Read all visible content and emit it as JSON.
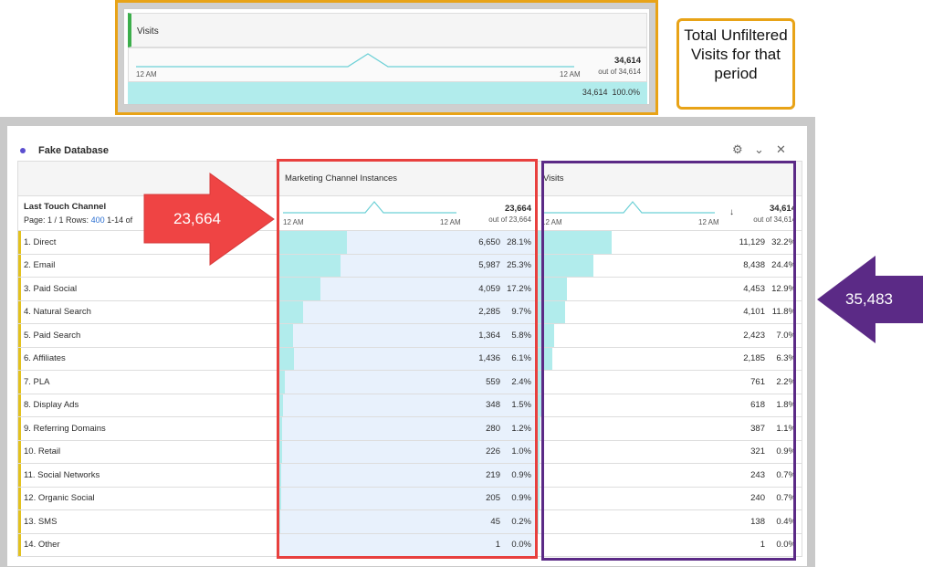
{
  "top_panel": {
    "metric": "Visits",
    "axis_start": "12 AM",
    "axis_end": "12 AM",
    "total": "34,614",
    "out_of": "out of 34,614",
    "row_value": "34,614",
    "row_pct": "100.0%"
  },
  "callout": {
    "text": "Total Unfiltered Visits for that period"
  },
  "panel": {
    "title": "Fake Database",
    "icons": [
      "gear-icon",
      "chevron-down-icon",
      "close-icon"
    ]
  },
  "table": {
    "dimension": "Last Touch Channel",
    "page_label": "Page: 1 / 1 Rows:",
    "rows_per_page": "400",
    "range": "1-14 of",
    "columns": [
      {
        "label": "Marketing Channel Instances",
        "axis_start": "12 AM",
        "axis_end": "12 AM",
        "total": "23,664",
        "out_of": "out of 23,664"
      },
      {
        "label": "Visits",
        "axis_start": "12 AM",
        "axis_end": "12 AM",
        "total": "34,614",
        "out_of": "out of 34,614",
        "sort": "↓"
      }
    ],
    "rows": [
      {
        "name": "1.  Direct",
        "m": "6,650",
        "mp": "28.1%",
        "mf": 28.1,
        "v": "11,129",
        "vp": "32.2%",
        "vf": 32.2
      },
      {
        "name": "2.  Email",
        "m": "5,987",
        "mp": "25.3%",
        "mf": 25.3,
        "v": "8,438",
        "vp": "24.4%",
        "vf": 24.4
      },
      {
        "name": "3.  Paid Social",
        "m": "4,059",
        "mp": "17.2%",
        "mf": 17.2,
        "v": "4,453",
        "vp": "12.9%",
        "vf": 12.9
      },
      {
        "name": "4.  Natural Search",
        "m": "2,285",
        "mp": "9.7%",
        "mf": 9.7,
        "v": "4,101",
        "vp": "11.8%",
        "vf": 11.8
      },
      {
        "name": "5.  Paid Search",
        "m": "1,364",
        "mp": "5.8%",
        "mf": 5.8,
        "v": "2,423",
        "vp": "7.0%",
        "vf": 7.0
      },
      {
        "name": "6.  Affiliates",
        "m": "1,436",
        "mp": "6.1%",
        "mf": 6.1,
        "v": "2,185",
        "vp": "6.3%",
        "vf": 6.3
      },
      {
        "name": "7.  PLA",
        "m": "559",
        "mp": "2.4%",
        "mf": 2.4,
        "v": "761",
        "vp": "2.2%",
        "vf": 2.2
      },
      {
        "name": "8.  Display Ads",
        "m": "348",
        "mp": "1.5%",
        "mf": 1.5,
        "v": "618",
        "vp": "1.8%",
        "vf": 1.8
      },
      {
        "name": "9.  Referring Domains",
        "m": "280",
        "mp": "1.2%",
        "mf": 1.2,
        "v": "387",
        "vp": "1.1%",
        "vf": 1.1
      },
      {
        "name": "10.  Retail",
        "m": "226",
        "mp": "1.0%",
        "mf": 1.0,
        "v": "321",
        "vp": "0.9%",
        "vf": 0.9
      },
      {
        "name": "11.  Social Networks",
        "m": "219",
        "mp": "0.9%",
        "mf": 0.9,
        "v": "243",
        "vp": "0.7%",
        "vf": 0.7
      },
      {
        "name": "12.  Organic Social",
        "m": "205",
        "mp": "0.9%",
        "mf": 0.9,
        "v": "240",
        "vp": "0.7%",
        "vf": 0.7
      },
      {
        "name": "13.  SMS",
        "m": "45",
        "mp": "0.2%",
        "mf": 0.2,
        "v": "138",
        "vp": "0.4%",
        "vf": 0.4
      },
      {
        "name": "14.  Other",
        "m": "1",
        "mp": "0.0%",
        "mf": 0.0,
        "v": "1",
        "vp": "0.0%",
        "vf": 0.0
      }
    ]
  },
  "annotations": {
    "red_arrow": "23,664",
    "purple_arrow": "35,483"
  },
  "colors": {
    "red": "#e8403e",
    "purple": "#5b2a86",
    "orange": "#e8a317",
    "bar": "#b1ecec"
  }
}
